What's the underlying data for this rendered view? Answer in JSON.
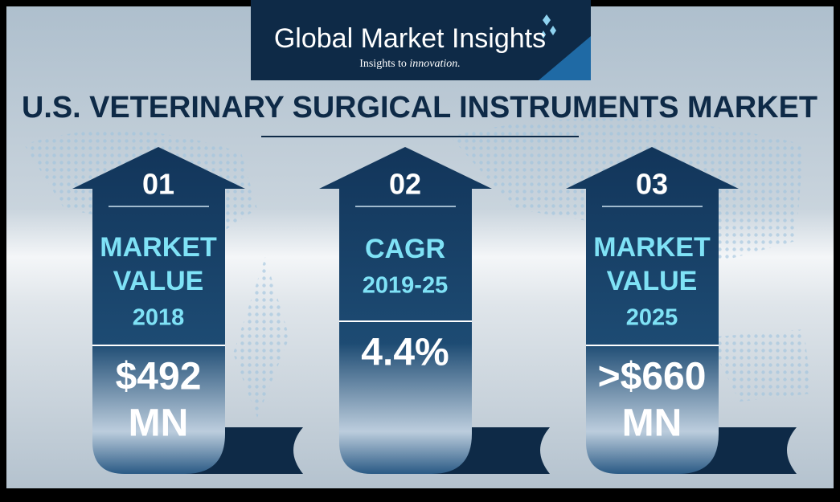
{
  "logo": {
    "brand": "Global Market Insights",
    "tagline": "Insights to",
    "tagline_emphasis": "innovation."
  },
  "title": "U.S. VETERINARY SURGICAL INSTRUMENTS MARKET",
  "cards": [
    {
      "number": "01",
      "label_lines": [
        "MARKET",
        "VALUE",
        "2018"
      ],
      "value_lines": [
        "$492",
        "MN"
      ]
    },
    {
      "number": "02",
      "label_lines": [
        "CAGR",
        "2019-25"
      ],
      "value_lines": [
        "4.4%"
      ]
    },
    {
      "number": "03",
      "label_lines": [
        "MARKET",
        "VALUE",
        "2025"
      ],
      "value_lines": [
        ">$660",
        "MN"
      ]
    }
  ]
}
